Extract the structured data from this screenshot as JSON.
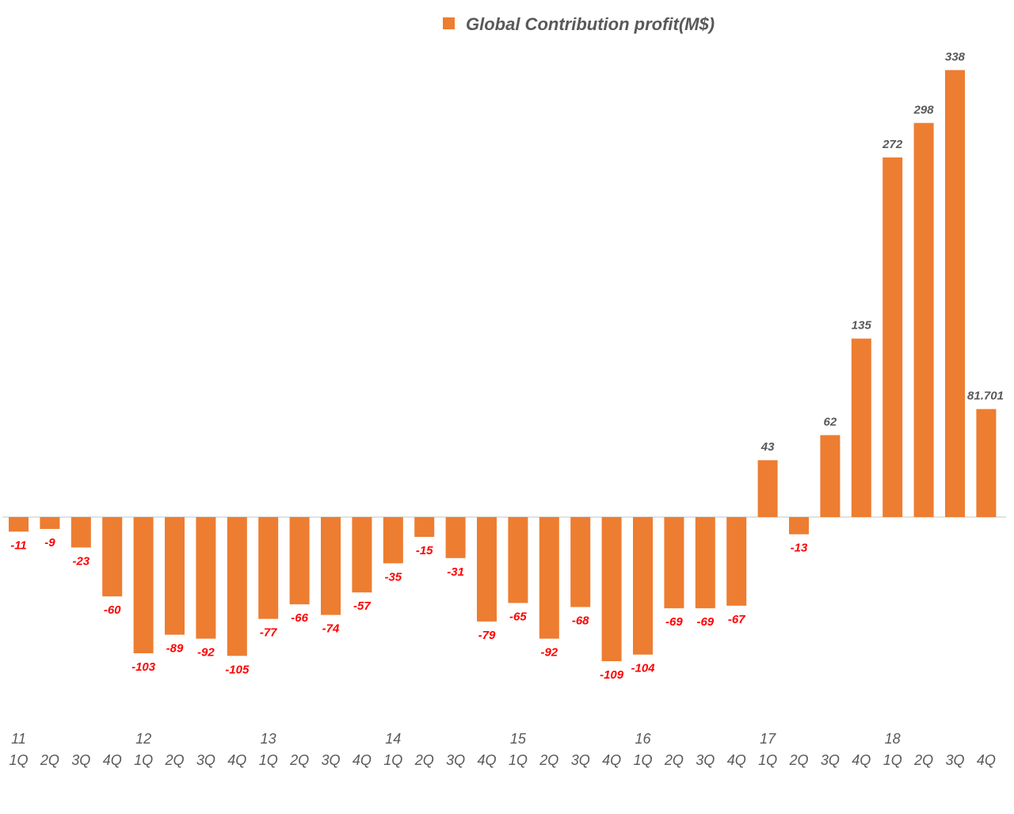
{
  "chart_data": {
    "type": "bar",
    "title": "",
    "legend": {
      "label": "Global Contribution profit(M$)",
      "position": "top"
    },
    "series": [
      {
        "name": "Global Contribution profit(M$)",
        "color": "#ed7d31",
        "values": [
          -11,
          -9,
          -23,
          -60,
          -103,
          -89,
          -92,
          -105,
          -77,
          -66,
          -74,
          -57,
          -35,
          -15,
          -31,
          -79,
          -65,
          -92,
          -68,
          -109,
          -104,
          -69,
          -69,
          -67,
          43,
          -13,
          62,
          135,
          272,
          298,
          338,
          81.701
        ],
        "labels": [
          "-11",
          "-9",
          "-23",
          "-60",
          "-103",
          "-89",
          "-92",
          "-105",
          "-77",
          "-66",
          "-74",
          "-57",
          "-35",
          "-15",
          "-31",
          "-79",
          "-65",
          "-92",
          "-68",
          "-109",
          "-104",
          "-69",
          "-69",
          "-67",
          "43",
          "-13",
          "62",
          "135",
          "272",
          "298",
          "338",
          "81.701"
        ]
      }
    ],
    "categories": [
      "1Q",
      "2Q",
      "3Q",
      "4Q",
      "1Q",
      "2Q",
      "3Q",
      "4Q",
      "1Q",
      "2Q",
      "3Q",
      "4Q",
      "1Q",
      "2Q",
      "3Q",
      "4Q",
      "1Q",
      "2Q",
      "3Q",
      "4Q",
      "1Q",
      "2Q",
      "3Q",
      "4Q",
      "1Q",
      "2Q",
      "3Q",
      "4Q",
      "1Q",
      "2Q",
      "3Q",
      "4Q"
    ],
    "year_labels": [
      "11",
      "12",
      "13",
      "14",
      "15",
      "16",
      "17",
      "18"
    ],
    "positive_label_color": "#595959",
    "negative_label_color": "#ff0000",
    "axis_line_color": "#d9d9d9",
    "ylim": [
      -150,
      350
    ],
    "xlabel": "",
    "ylabel": "",
    "grid": false
  }
}
